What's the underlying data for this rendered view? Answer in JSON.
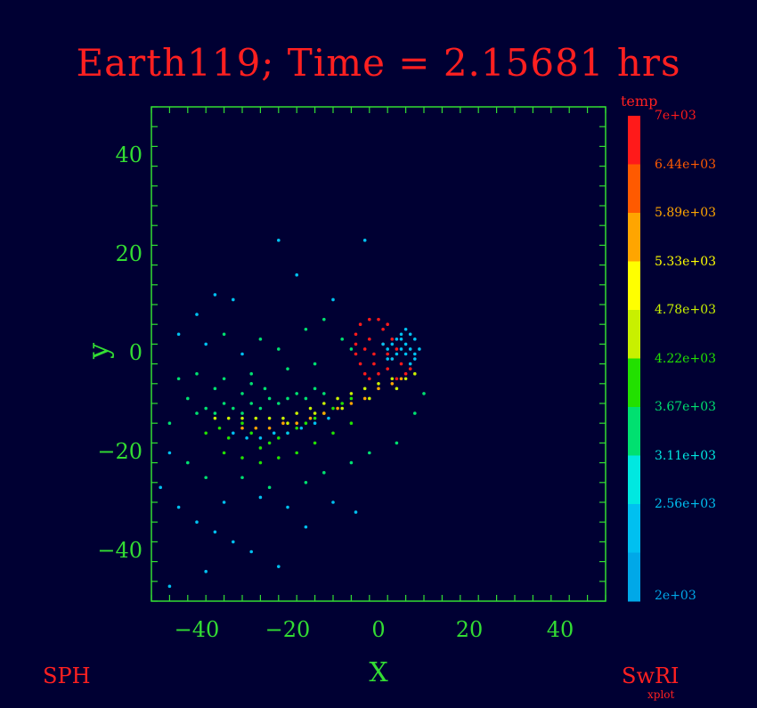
{
  "chart_data": {
    "type": "scatter",
    "title": "Earth119; Time = 2.15681 hrs",
    "xlabel": "X",
    "ylabel": "y",
    "xlim": [
      -50,
      50
    ],
    "ylim": [
      -50,
      50
    ],
    "xticks": [
      -40,
      -20,
      0,
      20,
      40
    ],
    "yticks": [
      -40,
      -20,
      0,
      20,
      40
    ],
    "xtick_labels": [
      "−40",
      "−20",
      "0",
      "20",
      "40"
    ],
    "ytick_labels": [
      "−40",
      "−20",
      "0",
      "20",
      "40"
    ],
    "grid": false,
    "colorbar": {
      "label": "temp",
      "min": 2000,
      "max": 7000,
      "levels": [
        {
          "label": "7e+03",
          "color": "#ff1a1a"
        },
        {
          "label": "6.44e+03",
          "color": "#ff5a00"
        },
        {
          "label": "5.89e+03",
          "color": "#ffa500"
        },
        {
          "label": "5.33e+03",
          "color": "#ffff00"
        },
        {
          "label": "4.78e+03",
          "color": "#c8f000"
        },
        {
          "label": "4.22e+03",
          "color": "#22e000"
        },
        {
          "label": "3.67e+03",
          "color": "#00e070"
        },
        {
          "label": "3.11e+03",
          "color": "#00e8e0"
        },
        {
          "label": "2.56e+03",
          "color": "#00c0f0"
        },
        {
          "label": "2e+03",
          "color": "#00a8e8"
        }
      ]
    },
    "series": [
      {
        "points": [
          [
            -40,
            -12
          ],
          [
            -38,
            -11
          ],
          [
            -36,
            -12
          ],
          [
            -34,
            -10
          ],
          [
            -32,
            -11
          ],
          [
            -30,
            -12
          ],
          [
            -28,
            -10
          ],
          [
            -26,
            -11
          ],
          [
            -24,
            -9
          ],
          [
            -22,
            -10
          ],
          [
            -20,
            -9
          ],
          [
            -18,
            -8
          ],
          [
            -16,
            -9
          ],
          [
            -14,
            -7
          ],
          [
            -12,
            -8
          ],
          [
            -36,
            -7
          ],
          [
            -30,
            -8
          ],
          [
            -25,
            -7
          ],
          [
            -44,
            -5
          ],
          [
            -40,
            -4
          ],
          [
            -34,
            -5
          ],
          [
            -28,
            -6
          ]
        ],
        "temp": 3500
      },
      {
        "points": [
          [
            -38,
            -16
          ],
          [
            -35,
            -15
          ],
          [
            -33,
            -17
          ],
          [
            -30,
            -14
          ],
          [
            -28,
            -16
          ],
          [
            -26,
            -19
          ],
          [
            -24,
            -18
          ],
          [
            -22,
            -17
          ],
          [
            -20,
            -16
          ],
          [
            -18,
            -15
          ],
          [
            -16,
            -14
          ],
          [
            -14,
            -13
          ],
          [
            -12,
            -12
          ],
          [
            -10,
            -11
          ],
          [
            -8,
            -10
          ],
          [
            -6,
            -9
          ],
          [
            -34,
            -20
          ],
          [
            -30,
            -21
          ],
          [
            -26,
            -22
          ],
          [
            -22,
            -21
          ],
          [
            -18,
            -20
          ],
          [
            -14,
            -18
          ],
          [
            -10,
            -16
          ],
          [
            -6,
            -14
          ]
        ],
        "temp": 4200
      },
      {
        "points": [
          [
            -36,
            -13
          ],
          [
            -33,
            -13
          ],
          [
            -30,
            -13
          ],
          [
            -27,
            -13
          ],
          [
            -24,
            -13
          ],
          [
            -21,
            -13
          ],
          [
            -18,
            -12
          ],
          [
            -15,
            -11
          ],
          [
            -12,
            -10
          ],
          [
            -9,
            -9
          ],
          [
            -6,
            -8
          ],
          [
            -3,
            -7
          ],
          [
            0,
            -6
          ],
          [
            3,
            -5
          ],
          [
            6,
            -5
          ],
          [
            8,
            -4
          ],
          [
            -20,
            -14
          ],
          [
            -14,
            -12
          ],
          [
            -8,
            -11
          ],
          [
            -2,
            -9
          ],
          [
            4,
            -7
          ]
        ],
        "temp": 5000
      },
      {
        "points": [
          [
            -30,
            -15
          ],
          [
            -27,
            -15
          ],
          [
            -24,
            -15
          ],
          [
            -21,
            -14
          ],
          [
            -18,
            -14
          ],
          [
            -15,
            -13
          ],
          [
            -12,
            -12
          ],
          [
            -9,
            -11
          ],
          [
            -6,
            -10
          ],
          [
            -3,
            -9
          ],
          [
            0,
            -7
          ],
          [
            3,
            -6
          ],
          [
            5,
            -5
          ]
        ],
        "temp": 5800
      },
      {
        "points": [
          [
            -32,
            -16
          ],
          [
            -29,
            -17
          ],
          [
            -26,
            -17
          ],
          [
            -23,
            -16
          ],
          [
            -20,
            -16
          ],
          [
            -17,
            -15
          ],
          [
            -14,
            -14
          ],
          [
            -11,
            -13
          ]
        ],
        "temp": 2800
      },
      {
        "points": [
          [
            -4,
            6
          ],
          [
            -2,
            7
          ],
          [
            0,
            7
          ],
          [
            2,
            6
          ],
          [
            -5,
            4
          ],
          [
            -5,
            2
          ],
          [
            -5,
            0
          ],
          [
            -4,
            -2
          ],
          [
            -3,
            -4
          ],
          [
            -2,
            -5
          ],
          [
            0,
            -4
          ],
          [
            2,
            -3
          ],
          [
            3,
            -1
          ],
          [
            4,
            1
          ],
          [
            3,
            3
          ],
          [
            1,
            5
          ],
          [
            -2,
            3
          ],
          [
            -3,
            1
          ],
          [
            -1,
            0
          ],
          [
            1,
            2
          ],
          [
            5,
            -2
          ],
          [
            6,
            -4
          ],
          [
            7,
            -3
          ],
          [
            4,
            -5
          ],
          [
            -1,
            -2
          ],
          [
            2,
            0
          ]
        ],
        "temp": 6800
      },
      {
        "points": [
          [
            1,
            2
          ],
          [
            2,
            1
          ],
          [
            3,
            2
          ],
          [
            4,
            3
          ],
          [
            5,
            4
          ],
          [
            6,
            5
          ],
          [
            7,
            4
          ],
          [
            8,
            3
          ],
          [
            9,
            1
          ],
          [
            8,
            -1
          ],
          [
            7,
            -2
          ],
          [
            6,
            0
          ],
          [
            5,
            1
          ],
          [
            4,
            0
          ],
          [
            3,
            -1
          ],
          [
            2,
            -1
          ],
          [
            6,
            2
          ],
          [
            7,
            1
          ],
          [
            8,
            0
          ],
          [
            5,
            3
          ]
        ],
        "temp": 2500
      },
      {
        "points": [
          [
            -22,
            23
          ],
          [
            -3,
            23
          ],
          [
            -18,
            16
          ],
          [
            -36,
            12
          ],
          [
            -32,
            11
          ],
          [
            -10,
            11
          ],
          [
            -40,
            8
          ],
          [
            -44,
            4
          ],
          [
            -38,
            2
          ],
          [
            -30,
            0
          ],
          [
            -46,
            -20
          ],
          [
            -48,
            -27
          ],
          [
            -44,
            -31
          ],
          [
            -40,
            -34
          ],
          [
            -36,
            -36
          ],
          [
            -32,
            -38
          ],
          [
            -28,
            -40
          ],
          [
            -22,
            -43
          ],
          [
            -46,
            -47
          ],
          [
            -38,
            -44
          ],
          [
            -34,
            -30
          ],
          [
            -26,
            -29
          ],
          [
            -20,
            -31
          ],
          [
            -16,
            -35
          ],
          [
            -10,
            -30
          ],
          [
            -5,
            -32
          ]
        ],
        "temp": 2800
      },
      {
        "points": [
          [
            -34,
            4
          ],
          [
            -26,
            3
          ],
          [
            -22,
            1
          ],
          [
            -16,
            5
          ],
          [
            -12,
            7
          ],
          [
            -8,
            3
          ],
          [
            -6,
            1
          ],
          [
            -28,
            -4
          ],
          [
            -20,
            -3
          ],
          [
            -14,
            -2
          ],
          [
            -42,
            -9
          ],
          [
            -46,
            -14
          ],
          [
            -42,
            -22
          ],
          [
            -38,
            -25
          ],
          [
            -30,
            -25
          ],
          [
            -24,
            -27
          ],
          [
            -16,
            -26
          ],
          [
            -12,
            -24
          ],
          [
            -6,
            -22
          ],
          [
            -2,
            -20
          ],
          [
            4,
            -18
          ],
          [
            8,
            -12
          ],
          [
            10,
            -8
          ]
        ],
        "temp": 3900
      }
    ]
  },
  "footer": {
    "left": "SPH",
    "right": "SwRI",
    "right_sub": "xplot"
  },
  "colors": {
    "background": "#000033",
    "axes": "#33dd33",
    "title": "#ff2020"
  }
}
